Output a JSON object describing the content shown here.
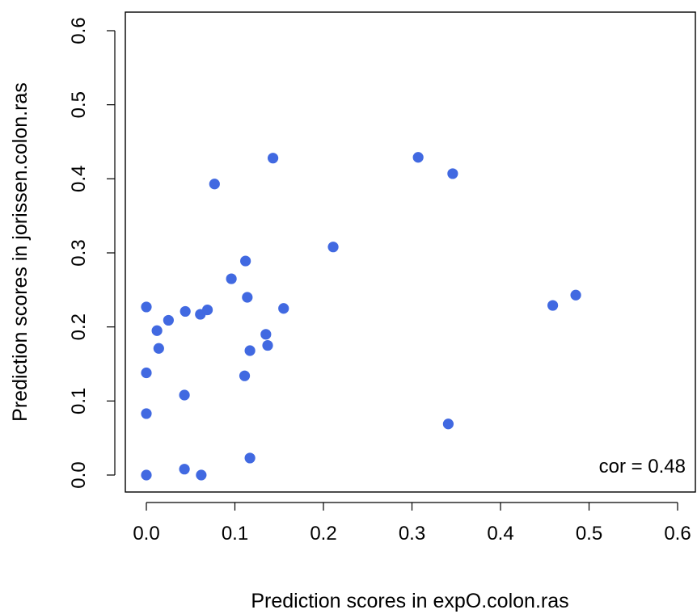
{
  "chart_data": {
    "type": "scatter",
    "xlabel": "Prediction scores in expO.colon.ras",
    "ylabel": "Prediction scores in jorissen.colon.ras",
    "xlim": [
      0.0,
      0.6
    ],
    "ylim": [
      0.0,
      0.6
    ],
    "xticks": [
      "0.0",
      "0.1",
      "0.2",
      "0.3",
      "0.4",
      "0.5",
      "0.6"
    ],
    "yticks": [
      "0.0",
      "0.1",
      "0.2",
      "0.3",
      "0.4",
      "0.5",
      "0.6"
    ],
    "annotation": "cor = 0.48",
    "point_color": "#4169E1",
    "grid": false,
    "series": [
      {
        "points": [
          {
            "x": 0.0,
            "y": 0.0
          },
          {
            "x": 0.0,
            "y": 0.083
          },
          {
            "x": 0.0,
            "y": 0.138
          },
          {
            "x": 0.0,
            "y": 0.227
          },
          {
            "x": 0.012,
            "y": 0.195
          },
          {
            "x": 0.014,
            "y": 0.171
          },
          {
            "x": 0.025,
            "y": 0.209
          },
          {
            "x": 0.043,
            "y": 0.008
          },
          {
            "x": 0.043,
            "y": 0.108
          },
          {
            "x": 0.044,
            "y": 0.221
          },
          {
            "x": 0.062,
            "y": 0.0
          },
          {
            "x": 0.061,
            "y": 0.217
          },
          {
            "x": 0.069,
            "y": 0.223
          },
          {
            "x": 0.077,
            "y": 0.393
          },
          {
            "x": 0.096,
            "y": 0.265
          },
          {
            "x": 0.111,
            "y": 0.134
          },
          {
            "x": 0.112,
            "y": 0.289
          },
          {
            "x": 0.114,
            "y": 0.24
          },
          {
            "x": 0.117,
            "y": 0.168
          },
          {
            "x": 0.117,
            "y": 0.023
          },
          {
            "x": 0.135,
            "y": 0.19
          },
          {
            "x": 0.137,
            "y": 0.175
          },
          {
            "x": 0.143,
            "y": 0.428
          },
          {
            "x": 0.155,
            "y": 0.225
          },
          {
            "x": 0.211,
            "y": 0.308
          },
          {
            "x": 0.307,
            "y": 0.429
          },
          {
            "x": 0.341,
            "y": 0.069
          },
          {
            "x": 0.346,
            "y": 0.407
          },
          {
            "x": 0.459,
            "y": 0.229
          },
          {
            "x": 0.485,
            "y": 0.243
          }
        ]
      }
    ]
  }
}
